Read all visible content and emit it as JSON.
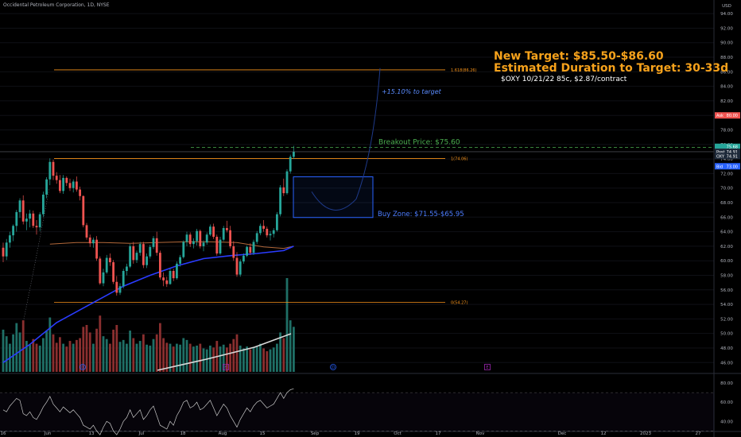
{
  "header": {
    "title": "Occidental Petroleum Corporation, 1D, NYSE",
    "currency": "USD"
  },
  "notes": {
    "target": "New Target: $85.50-$86.60",
    "duration": "Estimated Duration to Target: 30-33d",
    "option": "$OXY 10/21/22 85c, $2.87/contract"
  },
  "colors": {
    "background": "#000000",
    "up": "#26a69a",
    "down": "#ef5350",
    "vol_up": "#1f6f66",
    "vol_down": "#8a2f2f",
    "fib": "#f7931a",
    "ma_blue": "#2a3cff",
    "ma_orange": "#b2683a",
    "vol_ma": "#d9d9d9",
    "breakout": "#4caf50",
    "buy_zone": "#2962ff",
    "target_text": "#f7a21b"
  },
  "chart_data": {
    "type": "candlestick",
    "title": "Occidental Petroleum Corporation, 1D, NYSE",
    "ylim": [
      44.5,
      95
    ],
    "y_ticks": [
      "46.00",
      "48.00",
      "50.00",
      "52.00",
      "54.00",
      "56.00",
      "58.00",
      "60.00",
      "62.00",
      "64.00",
      "66.00",
      "68.00",
      "70.00",
      "72.00",
      "74.00",
      "76.00",
      "78.00",
      "80.00",
      "82.00",
      "84.00",
      "86.00",
      "88.00",
      "90.00",
      "92.00",
      "94.00"
    ],
    "x_ticks": [
      "16",
      "Jun",
      "13",
      "Jul",
      "18",
      "Aug",
      "15",
      "Sep",
      "19",
      "Oct",
      "17",
      "Nov",
      "Dec",
      "12",
      "2023",
      "27"
    ],
    "candles": [
      [
        61.8,
        62.5,
        59.8,
        60.6
      ],
      [
        60.6,
        63.0,
        60.1,
        62.5
      ],
      [
        62.5,
        64.0,
        61.8,
        63.5
      ],
      [
        63.5,
        65.0,
        62.7,
        64.8
      ],
      [
        64.8,
        67.0,
        64.0,
        66.7
      ],
      [
        66.7,
        68.6,
        65.9,
        68.3
      ],
      [
        68.3,
        69.0,
        65.0,
        65.4
      ],
      [
        65.4,
        66.5,
        64.2,
        65.8
      ],
      [
        65.8,
        67.0,
        64.6,
        66.5
      ],
      [
        66.5,
        66.9,
        64.5,
        64.8
      ],
      [
        64.8,
        65.6,
        63.6,
        64.6
      ],
      [
        64.6,
        66.7,
        64.1,
        66.4
      ],
      [
        66.4,
        69.5,
        66.0,
        69.1
      ],
      [
        69.1,
        71.5,
        68.6,
        71.2
      ],
      [
        71.2,
        74.1,
        70.4,
        73.6
      ],
      [
        73.6,
        73.9,
        71.1,
        71.7
      ],
      [
        71.7,
        72.2,
        70.6,
        71.1
      ],
      [
        71.1,
        71.8,
        69.3,
        69.6
      ],
      [
        69.6,
        71.8,
        69.2,
        71.4
      ],
      [
        71.4,
        71.6,
        70.3,
        70.7
      ],
      [
        70.7,
        71.3,
        69.6,
        70.0
      ],
      [
        70.0,
        71.2,
        69.4,
        70.9
      ],
      [
        70.9,
        71.6,
        69.5,
        69.8
      ],
      [
        69.8,
        70.2,
        68.3,
        68.9
      ],
      [
        68.9,
        69.0,
        64.6,
        64.9
      ],
      [
        64.9,
        65.2,
        62.9,
        63.2
      ],
      [
        63.2,
        63.6,
        61.9,
        62.4
      ],
      [
        62.4,
        63.2,
        61.8,
        62.9
      ],
      [
        62.9,
        63.4,
        60.0,
        60.3
      ],
      [
        60.3,
        60.6,
        56.7,
        56.9
      ],
      [
        56.9,
        58.9,
        56.5,
        58.4
      ],
      [
        58.4,
        60.8,
        58.2,
        60.4
      ],
      [
        60.4,
        61.0,
        59.3,
        59.8
      ],
      [
        59.8,
        60.1,
        56.8,
        57.1
      ],
      [
        57.1,
        57.9,
        55.2,
        55.6
      ],
      [
        55.6,
        56.9,
        55.3,
        56.5
      ],
      [
        56.5,
        58.9,
        56.2,
        58.6
      ],
      [
        58.6,
        59.6,
        58.0,
        59.2
      ],
      [
        59.2,
        62.3,
        59.0,
        62.0
      ],
      [
        62.0,
        62.6,
        59.6,
        60.1
      ],
      [
        60.1,
        61.4,
        59.7,
        61.1
      ],
      [
        61.1,
        62.6,
        60.7,
        62.3
      ],
      [
        62.3,
        62.6,
        59.0,
        59.4
      ],
      [
        59.4,
        61.0,
        59.0,
        60.6
      ],
      [
        60.6,
        62.2,
        60.3,
        61.9
      ],
      [
        61.9,
        63.4,
        61.6,
        63.1
      ],
      [
        63.1,
        64.0,
        60.7,
        61.1
      ],
      [
        61.1,
        61.4,
        57.4,
        57.7
      ],
      [
        57.7,
        58.4,
        56.5,
        57.3
      ],
      [
        57.3,
        57.8,
        56.4,
        56.8
      ],
      [
        56.8,
        58.9,
        56.7,
        58.6
      ],
      [
        58.6,
        58.9,
        57.2,
        57.6
      ],
      [
        57.6,
        59.9,
        57.4,
        59.6
      ],
      [
        59.6,
        60.8,
        59.2,
        60.5
      ],
      [
        60.5,
        62.8,
        60.3,
        62.6
      ],
      [
        62.6,
        64.0,
        62.0,
        63.6
      ],
      [
        63.6,
        63.9,
        61.9,
        62.3
      ],
      [
        62.3,
        63.1,
        61.7,
        62.7
      ],
      [
        62.7,
        64.4,
        62.1,
        64.1
      ],
      [
        64.1,
        64.3,
        61.7,
        62.0
      ],
      [
        62.0,
        62.8,
        61.3,
        62.5
      ],
      [
        62.5,
        63.9,
        62.2,
        63.6
      ],
      [
        63.6,
        65.0,
        63.4,
        64.7
      ],
      [
        64.7,
        65.1,
        63.0,
        63.3
      ],
      [
        63.3,
        63.6,
        60.7,
        61.0
      ],
      [
        61.0,
        63.3,
        60.8,
        62.9
      ],
      [
        62.9,
        64.8,
        62.7,
        64.5
      ],
      [
        64.5,
        65.5,
        63.9,
        64.2
      ],
      [
        64.2,
        64.8,
        61.7,
        62.0
      ],
      [
        62.0,
        62.7,
        60.0,
        60.4
      ],
      [
        60.4,
        61.2,
        57.8,
        58.1
      ],
      [
        58.1,
        60.2,
        57.8,
        59.9
      ],
      [
        59.9,
        61.0,
        59.6,
        60.7
      ],
      [
        60.7,
        62.1,
        60.5,
        61.9
      ],
      [
        61.9,
        62.4,
        60.8,
        61.1
      ],
      [
        61.1,
        62.9,
        60.8,
        62.6
      ],
      [
        62.6,
        64.1,
        62.3,
        63.8
      ],
      [
        63.8,
        65.1,
        63.5,
        64.8
      ],
      [
        64.8,
        65.6,
        64.0,
        64.4
      ],
      [
        64.4,
        64.7,
        63.2,
        63.5
      ],
      [
        63.5,
        64.1,
        62.8,
        63.7
      ],
      [
        63.7,
        64.5,
        63.2,
        64.2
      ],
      [
        64.2,
        66.7,
        64.0,
        66.4
      ],
      [
        66.4,
        70.4,
        66.1,
        70.1
      ],
      [
        70.1,
        71.3,
        68.9,
        69.3
      ],
      [
        69.3,
        72.6,
        69.1,
        72.3
      ],
      [
        72.3,
        74.6,
        72.0,
        74.3
      ],
      [
        74.3,
        75.8,
        74.0,
        75.0
      ]
    ],
    "volume_up": [
      true,
      true,
      true,
      true,
      true,
      true,
      false,
      true,
      true,
      false,
      false,
      true,
      true,
      true,
      true,
      false,
      false,
      false,
      true,
      false,
      false,
      true,
      false,
      false,
      false,
      false,
      false,
      true,
      false,
      false,
      true,
      true,
      false,
      false,
      false,
      true,
      true,
      true,
      true,
      false,
      true,
      true,
      false,
      true,
      true,
      true,
      false,
      false,
      false,
      false,
      true,
      false,
      true,
      true,
      true,
      true,
      false,
      true,
      true,
      false,
      true,
      true,
      true,
      false,
      false,
      true,
      true,
      false,
      false,
      false,
      false,
      true,
      true,
      true,
      false,
      true,
      true,
      true,
      false,
      false,
      true,
      true,
      true,
      true,
      false,
      true,
      true,
      true
    ],
    "volume_levels": [
      0.45,
      0.38,
      0.3,
      0.4,
      0.52,
      0.42,
      0.55,
      0.33,
      0.29,
      0.35,
      0.3,
      0.28,
      0.36,
      0.44,
      0.58,
      0.4,
      0.31,
      0.37,
      0.3,
      0.27,
      0.33,
      0.3,
      0.34,
      0.36,
      0.48,
      0.5,
      0.42,
      0.3,
      0.46,
      0.6,
      0.38,
      0.35,
      0.3,
      0.45,
      0.5,
      0.32,
      0.34,
      0.3,
      0.44,
      0.36,
      0.3,
      0.33,
      0.4,
      0.29,
      0.28,
      0.35,
      0.4,
      0.52,
      0.36,
      0.31,
      0.3,
      0.27,
      0.3,
      0.29,
      0.36,
      0.34,
      0.3,
      0.27,
      0.28,
      0.3,
      0.25,
      0.24,
      0.28,
      0.26,
      0.33,
      0.27,
      0.29,
      0.26,
      0.3,
      0.35,
      0.4,
      0.28,
      0.25,
      0.27,
      0.24,
      0.26,
      0.27,
      0.3,
      0.25,
      0.22,
      0.24,
      0.26,
      0.3,
      0.42,
      0.36,
      1.0,
      0.55,
      0.48
    ],
    "ma_blue": [
      [
        0,
        46.0
      ],
      [
        8,
        48.5
      ],
      [
        16,
        51.5
      ],
      [
        24,
        53.5
      ],
      [
        30,
        55.0
      ],
      [
        36,
        56.5
      ],
      [
        44,
        58.0
      ],
      [
        52,
        59.3
      ],
      [
        60,
        60.3
      ],
      [
        68,
        60.7
      ],
      [
        76,
        61.0
      ],
      [
        84,
        61.4
      ],
      [
        87,
        62.0
      ]
    ],
    "ma_orange": [
      [
        14,
        62.3
      ],
      [
        22,
        62.5
      ],
      [
        30,
        62.5
      ],
      [
        38,
        62.4
      ],
      [
        46,
        62.5
      ],
      [
        54,
        62.6
      ],
      [
        62,
        62.6
      ],
      [
        70,
        62.5
      ],
      [
        78,
        61.9
      ],
      [
        84,
        61.7
      ],
      [
        87,
        62.0
      ]
    ],
    "fib": [
      {
        "level": 86.26,
        "label": "1.618(86.26)"
      },
      {
        "level": 74.06,
        "label": "1(74.06)"
      },
      {
        "level": 54.27,
        "label": "0(54.27)"
      }
    ],
    "breakout": {
      "price": 75.6,
      "label": "Breakout Price: $75.60"
    },
    "buy_zone": {
      "high": 71.55,
      "low": 65.95,
      "label": "Buy Zone: $71.55-$65.95"
    },
    "target_pct_label": "+15.10% to target",
    "price_labels": [
      {
        "text": "Ask",
        "value": "80.00",
        "price": 80.0,
        "color": "#ef5350"
      },
      {
        "text": "",
        "value": "75.68",
        "price": 75.68,
        "color": "#26a69a"
      },
      {
        "text": "Post",
        "value": "74.91",
        "price": 75.0,
        "color": "#1e2a3a"
      },
      {
        "text": "OXY",
        "value": "74.91",
        "price": 74.4,
        "color": "#1e2a3a"
      },
      {
        "text": "Bid",
        "value": "73.00",
        "price": 73.0,
        "color": "#2962ff"
      }
    ],
    "rsi": {
      "ticks": [
        "80.00",
        "60.00",
        "40.00"
      ],
      "levels": [
        70,
        30
      ],
      "values": [
        52,
        50,
        56,
        60,
        64,
        62,
        48,
        46,
        50,
        44,
        42,
        48,
        55,
        60,
        66,
        58,
        54,
        50,
        55,
        52,
        49,
        52,
        48,
        44,
        36,
        34,
        32,
        36,
        30,
        26,
        34,
        40,
        38,
        30,
        26,
        32,
        40,
        44,
        52,
        44,
        48,
        52,
        42,
        46,
        52,
        56,
        46,
        36,
        34,
        32,
        40,
        36,
        46,
        52,
        60,
        62,
        54,
        56,
        60,
        52,
        54,
        58,
        62,
        54,
        46,
        52,
        58,
        54,
        46,
        40,
        34,
        42,
        48,
        54,
        50,
        56,
        60,
        62,
        58,
        54,
        56,
        58,
        64,
        70,
        64,
        70,
        73,
        74
      ]
    },
    "markers": [
      {
        "label": "D",
        "type": "dividend"
      },
      {
        "label": "E",
        "type": "earnings"
      },
      {
        "label": "D",
        "type": "dividend"
      },
      {
        "label": "E",
        "type": "earnings"
      }
    ]
  }
}
